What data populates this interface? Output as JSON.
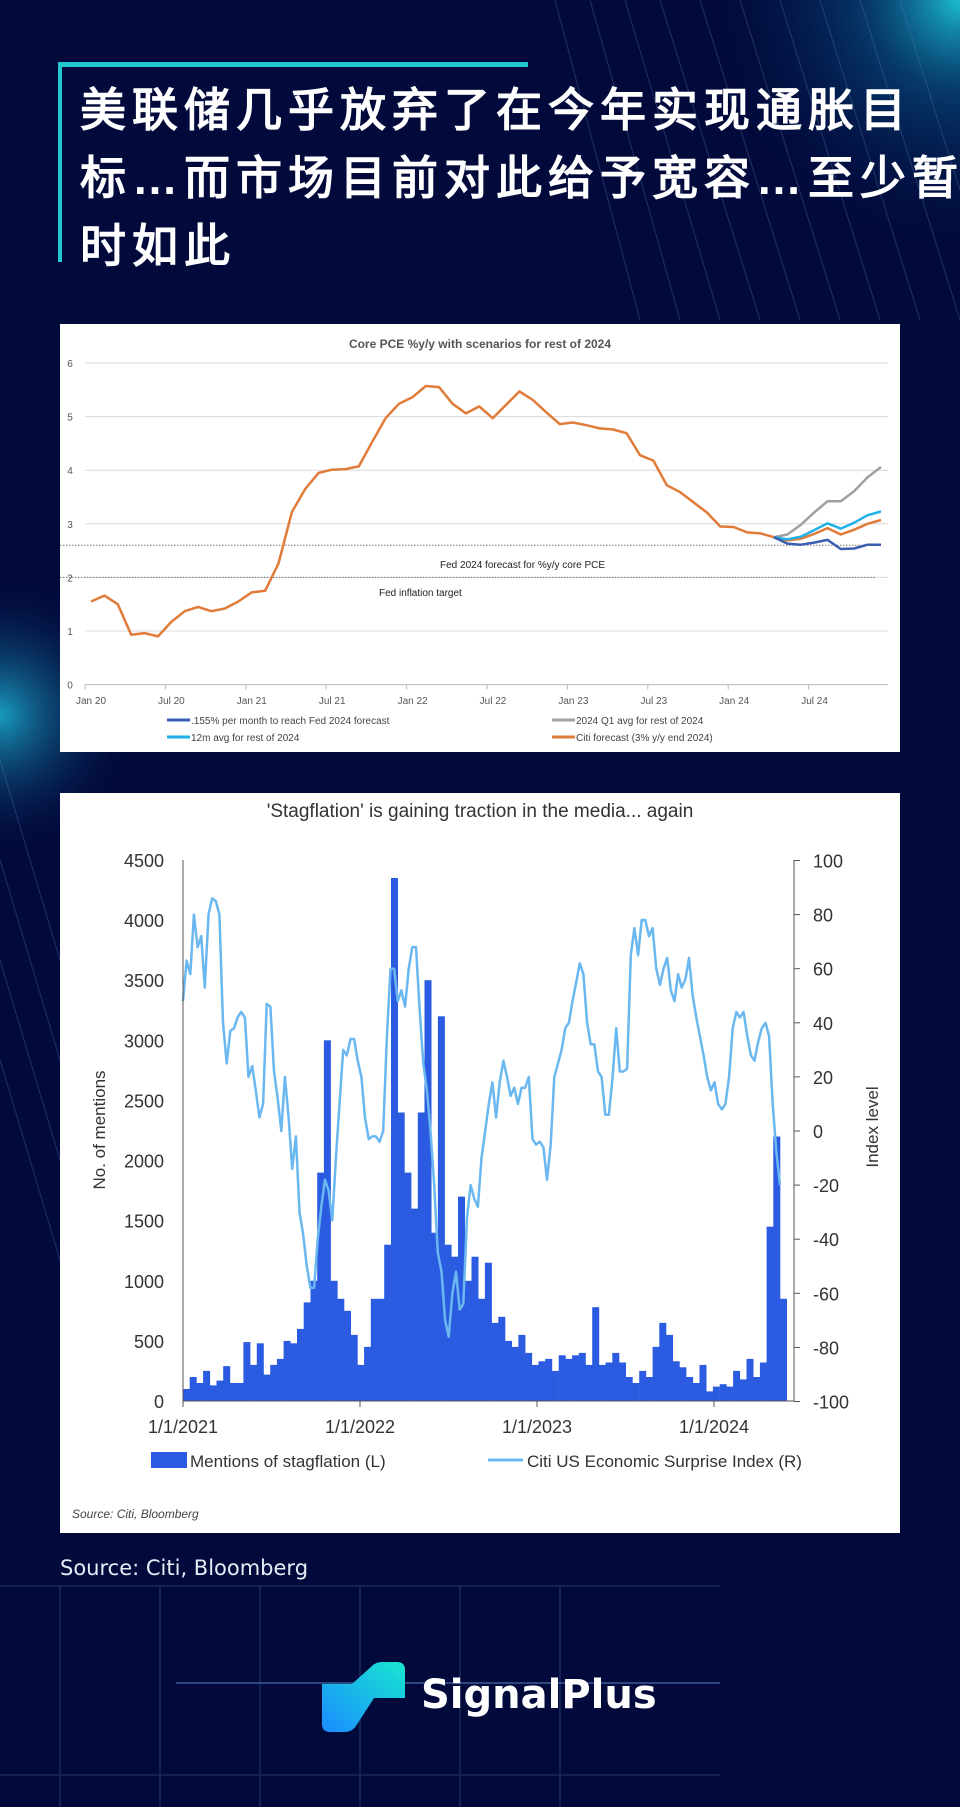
{
  "header": {
    "title_lines": [
      "美联储几乎放弃了在今年实现通胀目",
      "标…而市场目前对此给予宽容…至少暂",
      "时如此"
    ],
    "accent_color": "#23c7d0"
  },
  "footer": {
    "source": "Source: Citi, Bloomberg",
    "brand": "SignalPlus"
  },
  "chart_data": [
    {
      "type": "line",
      "title": "Core PCE %y/y with scenarios for rest of 2024",
      "xlabel": "",
      "ylabel": "",
      "ylim": [
        0,
        6
      ],
      "yticks": [
        "0",
        "1",
        "2",
        "3",
        "4",
        "5",
        "6"
      ],
      "xticks": [
        "Jan 20",
        "Jul 20",
        "Jan 21",
        "Jul 21",
        "Jan 22",
        "Jul 22",
        "Jan 23",
        "Jul 23",
        "Jan 24",
        "Jul 24"
      ],
      "x_start": "Jan 20",
      "frequency": "monthly",
      "grid": true,
      "legend_position": "bottom",
      "series": [
        {
          "name": ".155% per month to reach Fed 2024 forecast",
          "color": "#3a5fb0",
          "start_index": 51,
          "values": [
            2.75,
            2.63,
            2.61,
            2.65,
            2.7,
            2.53,
            2.54,
            2.61,
            2.61
          ]
        },
        {
          "name": "2024 Q1 avg for rest of 2024",
          "color": "#a0a0a0",
          "start_index": 51,
          "values": [
            2.75,
            2.8,
            2.98,
            3.21,
            3.42,
            3.42,
            3.61,
            3.87,
            4.06
          ]
        },
        {
          "name": "12m avg for rest of 2024",
          "color": "#1fb0e8",
          "start_index": 51,
          "values": [
            2.75,
            2.71,
            2.76,
            2.88,
            3.01,
            2.91,
            3.02,
            3.16,
            3.23
          ]
        },
        {
          "name": "Citi forecast (3% y/y end 2024)",
          "color": "#e07b39",
          "start_index": 0,
          "values": [
            1.55,
            1.66,
            1.5,
            0.93,
            0.96,
            0.9,
            1.17,
            1.37,
            1.45,
            1.37,
            1.42,
            1.55,
            1.72,
            1.75,
            2.26,
            3.22,
            3.65,
            3.95,
            4.01,
            4.02,
            4.07,
            4.53,
            4.97,
            5.24,
            5.36,
            5.57,
            5.55,
            5.24,
            5.06,
            5.19,
            4.97,
            5.22,
            5.47,
            5.31,
            5.08,
            4.86,
            4.89,
            4.84,
            4.78,
            4.76,
            4.69,
            4.28,
            4.18,
            3.72,
            3.59,
            3.4,
            3.21,
            2.95,
            2.94,
            2.84,
            2.82,
            2.75,
            2.69,
            2.72,
            2.81,
            2.92,
            2.8,
            2.89,
            3.0,
            3.07
          ]
        }
      ],
      "reference_lines": [
        {
          "value": 2.6,
          "label": "Fed 2024 forecast for %y/y core PCE"
        },
        {
          "value": 2.0,
          "label": "Fed inflation target"
        }
      ]
    },
    {
      "type": "bar+line",
      "title": "'Stagflation' is gaining traction in the media... again",
      "ylabel_left": "No. of mentions",
      "ylabel_right": "Index level",
      "ylim_left": [
        0,
        4500
      ],
      "ylim_right": [
        -100,
        100
      ],
      "yticks_left": [
        "0",
        "500",
        "1000",
        "1500",
        "2000",
        "2500",
        "3000",
        "3500",
        "4000",
        "4500"
      ],
      "yticks_right": [
        "-100",
        "-80",
        "-60",
        "-40",
        "-20",
        "0",
        "20",
        "40",
        "60",
        "80",
        "100"
      ],
      "xticks": [
        "1/1/2021",
        "1/1/2022",
        "1/1/2023",
        "1/1/2024"
      ],
      "x_range": [
        "2021-01-01",
        "2024-05-17"
      ],
      "grid": false,
      "legend_position": "bottom",
      "source_note": "Source: Citi, Bloomberg",
      "bars": {
        "name": "Mentions of stagflation (L)",
        "color": "#2a5be0",
        "frequency": "biweekly",
        "values": [
          100,
          200,
          150,
          250,
          130,
          170,
          290,
          150,
          150,
          490,
          300,
          480,
          220,
          300,
          350,
          500,
          480,
          600,
          820,
          1000,
          1900,
          3000,
          1000,
          850,
          750,
          550,
          300,
          450,
          850,
          850,
          1300,
          4350,
          2400,
          1900,
          1600,
          2400,
          3500,
          1400,
          3200,
          1300,
          1200,
          1700,
          1000,
          1200,
          850,
          1150,
          650,
          700,
          500,
          450,
          550,
          400,
          300,
          330,
          350,
          250,
          380,
          350,
          380,
          400,
          300,
          780,
          300,
          320,
          400,
          320,
          200,
          150,
          250,
          200,
          450,
          650,
          550,
          330,
          280,
          200,
          150,
          300,
          80,
          120,
          140,
          120,
          250,
          180,
          350,
          200,
          320,
          1450,
          2200,
          850
        ]
      },
      "line": {
        "name": "Citi US Economic Surprise Index (R)",
        "color": "#6bb8f0",
        "frequency": "weekly",
        "values": [
          48,
          63,
          58,
          80,
          68,
          72,
          53,
          80,
          86,
          85,
          80,
          40,
          25,
          37,
          38,
          42,
          44,
          42,
          20,
          24,
          15,
          5,
          10,
          47,
          46,
          22,
          12,
          0,
          20,
          5,
          -14,
          -2,
          -30,
          -38,
          -50,
          -58,
          -58,
          -40,
          -28,
          -18,
          -22,
          -33,
          -10,
          10,
          30,
          28,
          34,
          34,
          26,
          20,
          5,
          -3,
          -2,
          -2,
          -4,
          0,
          35,
          60,
          60,
          48,
          52,
          46,
          60,
          68,
          68,
          45,
          25,
          15,
          0,
          -20,
          -45,
          -52,
          -70,
          -76,
          -60,
          -52,
          -66,
          -64,
          -32,
          -20,
          -25,
          -28,
          -10,
          0,
          10,
          18,
          5,
          18,
          26,
          20,
          13,
          16,
          10,
          16,
          16,
          20,
          -3,
          -5,
          -4,
          -6,
          -18,
          -5,
          20,
          25,
          30,
          38,
          40,
          48,
          55,
          62,
          58,
          40,
          32,
          32,
          22,
          20,
          6,
          6,
          20,
          38,
          22,
          22,
          23,
          65,
          75,
          65,
          78,
          78,
          72,
          75,
          60,
          54,
          60,
          64,
          52,
          48,
          58,
          53,
          56,
          64,
          50,
          42,
          35,
          28,
          20,
          15,
          18,
          10,
          8,
          10,
          20,
          38,
          44,
          42,
          44,
          35,
          28,
          26,
          33,
          38,
          40,
          35,
          10,
          -8,
          -20
        ]
      }
    }
  ]
}
